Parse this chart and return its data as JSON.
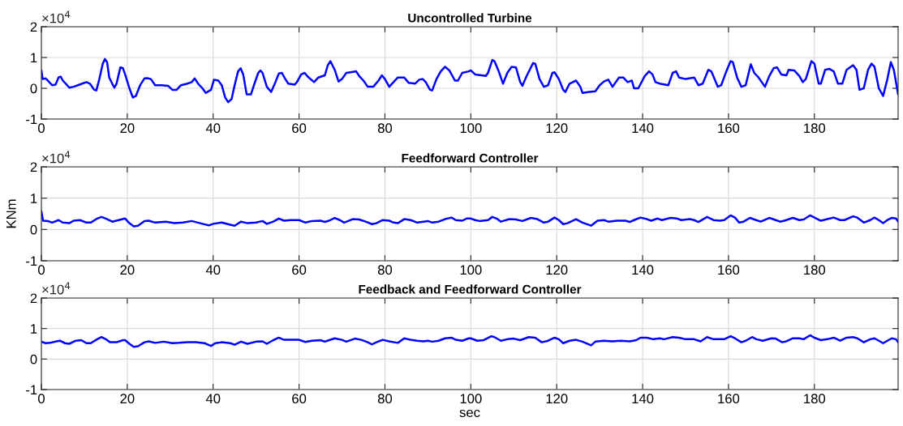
{
  "chart_data": [
    {
      "type": "line",
      "title": "Uncontrolled Turbine",
      "color": "#0000ff",
      "grid": true,
      "xlim": [
        0,
        199.5
      ],
      "ylim": [
        -1,
        2
      ],
      "xticks": [
        0,
        20,
        40,
        60,
        80,
        100,
        120,
        140,
        160,
        180
      ],
      "yticks": [
        -1,
        0,
        1,
        2
      ],
      "annotations": [
        "×10$^{4}$"
      ],
      "x": [
        0,
        0.3,
        1,
        1.5,
        2.5,
        3.3,
        4,
        4.5,
        5,
        6,
        6.5,
        7.5,
        8.5,
        9.5,
        10.5,
        11.3,
        12.3,
        12.8,
        13.5,
        14.3,
        14.8,
        15.3,
        15.8,
        16.5,
        17,
        17.5,
        18.4,
        19,
        19.5,
        20.5,
        21.3,
        22,
        23,
        24,
        24.7,
        25.5,
        26.5,
        28,
        29.5,
        30.5,
        31.5,
        32.5,
        34,
        35,
        35.7,
        36.5,
        37.5,
        38.3,
        39.5,
        40.2,
        41.2,
        42,
        42.8,
        43.5,
        44.3,
        45,
        45.8,
        46.4,
        47,
        47.8,
        48.8,
        49.5,
        50.5,
        51,
        51.5,
        52.5,
        53.5,
        54.5,
        55.3,
        56,
        56.8,
        57.5,
        59,
        59.5,
        60.5,
        61.3,
        62,
        63.5,
        64.5,
        66,
        66.7,
        67.3,
        68.3,
        69.2,
        70,
        71,
        72,
        73.3,
        74,
        75,
        76,
        77.3,
        78.5,
        79.3,
        80,
        81,
        82,
        83,
        84.5,
        85.5,
        87,
        88,
        88.8,
        89.5,
        90.5,
        91,
        92,
        93,
        94,
        95,
        96.3,
        97,
        98,
        99.5,
        100,
        101,
        102.5,
        103.5,
        104,
        105,
        105.5,
        106.5,
        107.5,
        108.5,
        109.5,
        110.5,
        111.5,
        112,
        113,
        114.5,
        115,
        116,
        117,
        118,
        119,
        119.5,
        120.5,
        121.5,
        122,
        123,
        124.5,
        125.5,
        126,
        127.5,
        129,
        130,
        131,
        132,
        133,
        134.5,
        135.5,
        136.5,
        137.5,
        138,
        139,
        140.5,
        141.5,
        142.3,
        143,
        144,
        146,
        147,
        147.8,
        148.5,
        150,
        152,
        153,
        154,
        155.3,
        156,
        157.5,
        158.3,
        159.5,
        160.5,
        161,
        162,
        163,
        164,
        165.2,
        166,
        167,
        168.5,
        169.5,
        170.5,
        171.3,
        172.3,
        173.5,
        174,
        175.3,
        176.5,
        177.3,
        178,
        179.3,
        180,
        181,
        181.5,
        182.5,
        183.5,
        184.5,
        185.5,
        186.5,
        187.5,
        189,
        189.8,
        190.5,
        191.5,
        192.5,
        193.3,
        194,
        195,
        196,
        197,
        197.8,
        198.5,
        199.5
      ],
      "values": [
        0.58,
        0.3,
        0.32,
        0.25,
        0.1,
        0.12,
        0.35,
        0.38,
        0.25,
        0.1,
        0.02,
        0.05,
        0.1,
        0.15,
        0.2,
        0.15,
        -0.05,
        -0.07,
        0.3,
        0.8,
        0.95,
        0.85,
        0.35,
        0.15,
        0.02,
        0.15,
        0.68,
        0.65,
        0.45,
        0.0,
        -0.3,
        -0.25,
        0.1,
        0.32,
        0.33,
        0.3,
        0.1,
        0.1,
        0.08,
        -0.05,
        -0.05,
        0.1,
        0.15,
        0.2,
        0.32,
        0.15,
        0.0,
        -0.15,
        -0.05,
        0.28,
        0.25,
        0.1,
        -0.3,
        -0.45,
        -0.35,
        0.1,
        0.55,
        0.65,
        0.45,
        -0.2,
        -0.2,
        0.1,
        0.5,
        0.58,
        0.5,
        0.05,
        -0.12,
        0.2,
        0.48,
        0.5,
        0.3,
        0.15,
        0.12,
        0.2,
        0.45,
        0.5,
        0.38,
        0.2,
        0.35,
        0.42,
        0.75,
        0.88,
        0.6,
        0.22,
        0.3,
        0.5,
        0.52,
        0.55,
        0.4,
        0.25,
        0.05,
        0.05,
        0.25,
        0.42,
        0.3,
        0.05,
        0.2,
        0.35,
        0.35,
        0.18,
        0.15,
        0.28,
        0.3,
        0.2,
        -0.05,
        -0.07,
        0.3,
        0.55,
        0.7,
        0.58,
        0.25,
        0.25,
        0.5,
        0.55,
        0.58,
        0.45,
        0.42,
        0.4,
        0.5,
        0.92,
        0.88,
        0.55,
        0.15,
        0.5,
        0.7,
        0.68,
        0.2,
        0.08,
        0.4,
        0.82,
        0.8,
        0.3,
        0.05,
        0.1,
        0.5,
        0.52,
        0.3,
        -0.05,
        -0.12,
        0.15,
        0.25,
        0.05,
        -0.15,
        -0.12,
        -0.1,
        0.1,
        0.22,
        0.28,
        0.05,
        0.35,
        0.35,
        0.2,
        0.25,
        0.0,
        0.0,
        0.4,
        0.55,
        0.45,
        0.2,
        0.15,
        0.1,
        0.5,
        0.55,
        0.35,
        0.3,
        0.35,
        0.1,
        0.15,
        0.6,
        0.55,
        0.05,
        0.1,
        0.55,
        0.88,
        0.85,
        0.35,
        0.05,
        0.1,
        0.78,
        0.5,
        0.35,
        0.05,
        0.4,
        0.65,
        0.68,
        0.45,
        0.42,
        0.6,
        0.58,
        0.4,
        0.2,
        0.3,
        0.88,
        0.8,
        0.15,
        0.15,
        0.6,
        0.63,
        0.55,
        0.15,
        0.15,
        0.6,
        0.75,
        0.6,
        -0.05,
        0.0,
        0.6,
        0.8,
        0.7,
        0.0,
        -0.25,
        0.3,
        0.85,
        0.6,
        -0.2
      ]
    },
    {
      "type": "line",
      "title": "Feedforward Controller",
      "ylabel": "KNm",
      "color": "#0000ff",
      "grid": true,
      "xlim": [
        0,
        199.5
      ],
      "ylim": [
        -1,
        2
      ],
      "xticks": [
        0,
        20,
        40,
        60,
        80,
        100,
        120,
        140,
        160,
        180
      ],
      "yticks": [
        -1,
        0,
        1,
        2
      ],
      "annotations": [
        "×10$^{4}$"
      ],
      "x": [
        0,
        0.4,
        1.5,
        2.5,
        4,
        5,
        6.5,
        7.5,
        9,
        10.5,
        11.5,
        13,
        14,
        15,
        16.5,
        18,
        19.5,
        20.5,
        21.5,
        22.5,
        24,
        25,
        26.5,
        29,
        31,
        33,
        35,
        37,
        39,
        40,
        42,
        44,
        45,
        46.5,
        48,
        50,
        51.5,
        52.5,
        54,
        55.3,
        56.5,
        58,
        60,
        61.5,
        63,
        65,
        66,
        67,
        68.3,
        69.5,
        70.5,
        72.5,
        74,
        75.5,
        77,
        78,
        79.5,
        81,
        82,
        83,
        84.5,
        86,
        87.5,
        89,
        90,
        91,
        92.5,
        94,
        95.5,
        96.5,
        98,
        99,
        100,
        101,
        102,
        104,
        105,
        106,
        107,
        109,
        110.5,
        112,
        114,
        115.5,
        117,
        118,
        119.5,
        120.5,
        121.5,
        122.5,
        124.5,
        126,
        128,
        129.5,
        131,
        132,
        134,
        136,
        137,
        138,
        139.5,
        141,
        142,
        143.5,
        144.5,
        146.5,
        148,
        149,
        151,
        152,
        153,
        155,
        156.5,
        158,
        159,
        160.5,
        161.5,
        162.5,
        163.5,
        165,
        166,
        167.5,
        169.5,
        171,
        172,
        173,
        175,
        176.5,
        177.5,
        179,
        180,
        181.5,
        183,
        184.5,
        186,
        187,
        189,
        190,
        191.5,
        193,
        194,
        195,
        196,
        197,
        198,
        199,
        199.5
      ],
      "values": [
        0.58,
        0.28,
        0.27,
        0.22,
        0.3,
        0.22,
        0.2,
        0.28,
        0.3,
        0.22,
        0.22,
        0.35,
        0.4,
        0.35,
        0.25,
        0.3,
        0.35,
        0.2,
        0.1,
        0.12,
        0.27,
        0.28,
        0.22,
        0.25,
        0.2,
        0.22,
        0.27,
        0.2,
        0.13,
        0.18,
        0.22,
        0.15,
        0.12,
        0.25,
        0.2,
        0.22,
        0.27,
        0.18,
        0.25,
        0.35,
        0.28,
        0.3,
        0.3,
        0.22,
        0.27,
        0.28,
        0.24,
        0.28,
        0.37,
        0.3,
        0.22,
        0.33,
        0.32,
        0.25,
        0.17,
        0.2,
        0.3,
        0.28,
        0.22,
        0.2,
        0.33,
        0.3,
        0.22,
        0.25,
        0.27,
        0.22,
        0.25,
        0.33,
        0.38,
        0.3,
        0.28,
        0.35,
        0.35,
        0.3,
        0.27,
        0.3,
        0.4,
        0.35,
        0.25,
        0.33,
        0.32,
        0.27,
        0.37,
        0.33,
        0.22,
        0.25,
        0.38,
        0.3,
        0.17,
        0.2,
        0.33,
        0.22,
        0.12,
        0.28,
        0.3,
        0.25,
        0.28,
        0.28,
        0.24,
        0.3,
        0.38,
        0.33,
        0.28,
        0.35,
        0.3,
        0.37,
        0.35,
        0.3,
        0.33,
        0.3,
        0.24,
        0.4,
        0.3,
        0.28,
        0.3,
        0.45,
        0.38,
        0.22,
        0.25,
        0.37,
        0.32,
        0.25,
        0.37,
        0.3,
        0.25,
        0.28,
        0.37,
        0.3,
        0.32,
        0.45,
        0.38,
        0.28,
        0.33,
        0.38,
        0.3,
        0.3,
        0.42,
        0.38,
        0.22,
        0.3,
        0.38,
        0.3,
        0.2,
        0.3,
        0.37,
        0.35,
        0.25
      ]
    },
    {
      "type": "line",
      "title": "Feedback and Feedforward Controller",
      "xlabel": "sec",
      "color": "#0000ff",
      "grid": true,
      "xlim": [
        0,
        199.5
      ],
      "ylim": [
        -1,
        2
      ],
      "xticks": [
        0,
        20,
        40,
        60,
        80,
        100,
        120,
        140,
        160,
        180
      ],
      "yticks": [
        -1,
        0,
        1,
        2
      ],
      "annotations": [
        "×10$^{4}$"
      ],
      "x": [
        0,
        1,
        2,
        3.5,
        4.3,
        5.5,
        6.5,
        8,
        9.3,
        10.5,
        11.5,
        13,
        14,
        15,
        16,
        17.5,
        19,
        19.5,
        20.5,
        21.5,
        22.5,
        24,
        25,
        26.5,
        28.5,
        30.5,
        32,
        34,
        36,
        38,
        39.5,
        40.5,
        42,
        44,
        45,
        46.5,
        48,
        50,
        51.5,
        52.5,
        54,
        55.3,
        56.5,
        58,
        60,
        61.5,
        63,
        65,
        66,
        67,
        68.3,
        70,
        71,
        73,
        74.5,
        76,
        77,
        78,
        79.5,
        81,
        83,
        84.5,
        86,
        87.5,
        89,
        90,
        91,
        92.5,
        94,
        95.5,
        96.5,
        98,
        99.5,
        100,
        101.5,
        103,
        104.8,
        105.5,
        107,
        108.5,
        110,
        111.5,
        113.5,
        115,
        116.5,
        118,
        119.5,
        120.5,
        121.5,
        123,
        124.5,
        126,
        128,
        129,
        131,
        133,
        135,
        137,
        138.5,
        139.5,
        141,
        142.5,
        144,
        145,
        147,
        148.5,
        150,
        152,
        153.5,
        155,
        156.5,
        159,
        160.5,
        161.5,
        163,
        164,
        165.5,
        166.5,
        168,
        170,
        171,
        172.5,
        173.5,
        175,
        176.5,
        177.5,
        179,
        180,
        181.5,
        183,
        184.5,
        186,
        187.5,
        189,
        190,
        191.5,
        193,
        194,
        195,
        196,
        197,
        198,
        199,
        199.5
      ],
      "values": [
        0.57,
        0.52,
        0.53,
        0.58,
        0.6,
        0.52,
        0.5,
        0.6,
        0.62,
        0.52,
        0.52,
        0.65,
        0.72,
        0.65,
        0.55,
        0.55,
        0.62,
        0.62,
        0.5,
        0.4,
        0.42,
        0.55,
        0.58,
        0.53,
        0.57,
        0.52,
        0.53,
        0.55,
        0.55,
        0.52,
        0.43,
        0.52,
        0.55,
        0.52,
        0.47,
        0.57,
        0.5,
        0.57,
        0.58,
        0.5,
        0.62,
        0.7,
        0.63,
        0.63,
        0.63,
        0.56,
        0.6,
        0.62,
        0.57,
        0.62,
        0.68,
        0.63,
        0.57,
        0.67,
        0.63,
        0.55,
        0.48,
        0.55,
        0.63,
        0.58,
        0.53,
        0.68,
        0.63,
        0.6,
        0.58,
        0.6,
        0.57,
        0.6,
        0.68,
        0.7,
        0.63,
        0.6,
        0.68,
        0.68,
        0.6,
        0.62,
        0.75,
        0.72,
        0.6,
        0.65,
        0.67,
        0.62,
        0.72,
        0.7,
        0.55,
        0.6,
        0.7,
        0.65,
        0.52,
        0.6,
        0.63,
        0.57,
        0.45,
        0.57,
        0.6,
        0.58,
        0.6,
        0.58,
        0.62,
        0.7,
        0.7,
        0.65,
        0.68,
        0.65,
        0.72,
        0.7,
        0.65,
        0.65,
        0.58,
        0.72,
        0.65,
        0.65,
        0.75,
        0.68,
        0.55,
        0.6,
        0.72,
        0.65,
        0.6,
        0.68,
        0.67,
        0.55,
        0.58,
        0.68,
        0.68,
        0.65,
        0.78,
        0.7,
        0.62,
        0.65,
        0.7,
        0.6,
        0.7,
        0.72,
        0.68,
        0.55,
        0.65,
        0.68,
        0.6,
        0.52,
        0.6,
        0.68,
        0.65,
        0.55
      ]
    }
  ]
}
